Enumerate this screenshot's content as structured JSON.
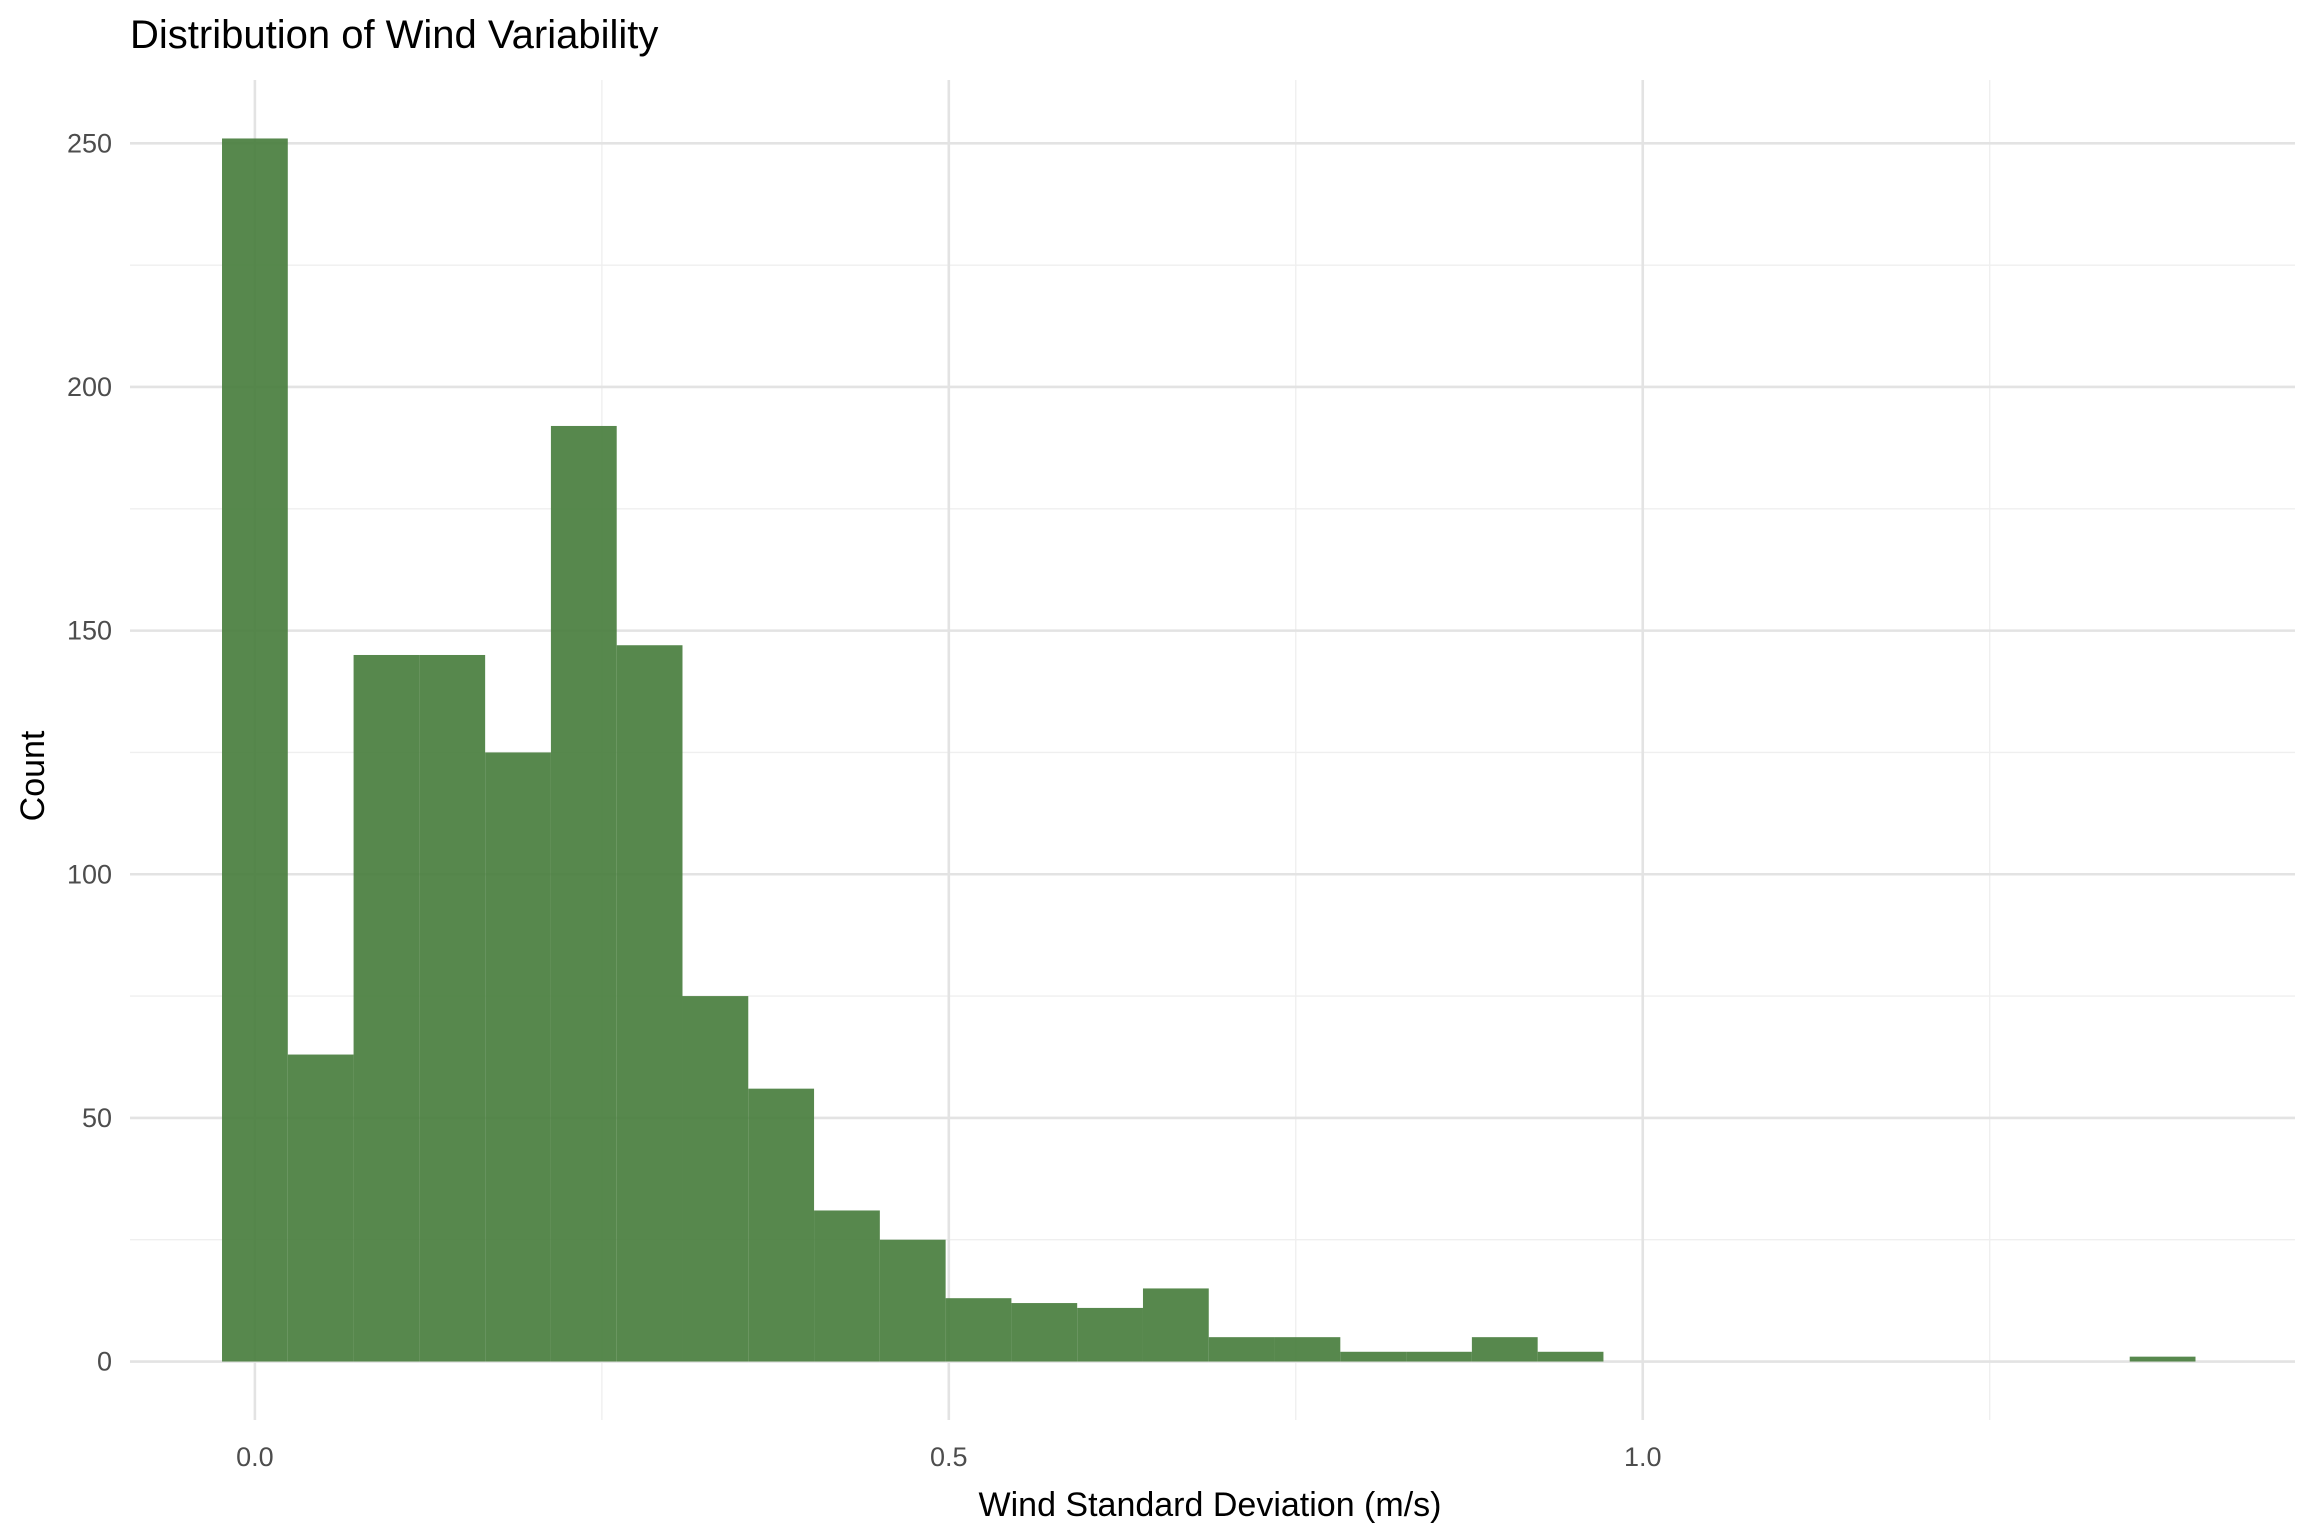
{
  "chart_data": {
    "type": "bar",
    "title": "Distribution of Wind Variability",
    "xlabel": "Wind Standard Deviation (m/s)",
    "ylabel": "Count",
    "bar_color": "#4a7f3f",
    "grid": true,
    "xlim": [
      -0.09,
      1.47
    ],
    "ylim": [
      -12,
      263
    ],
    "x_ticks": [
      0.0,
      0.5,
      1.0
    ],
    "x_tick_labels": [
      "0.0",
      "0.5",
      "1.0"
    ],
    "x_minor_ticks": [
      0.25,
      0.75,
      1.25
    ],
    "y_ticks": [
      0,
      50,
      100,
      150,
      200,
      250
    ],
    "y_tick_labels": [
      "0",
      "50",
      "100",
      "150",
      "200",
      "250"
    ],
    "y_minor_ticks": [
      25,
      75,
      125,
      175,
      225
    ],
    "bin_width": 0.0474,
    "bins": [
      {
        "x0": -0.0237,
        "x1": 0.0237,
        "count": 251
      },
      {
        "x0": 0.0237,
        "x1": 0.0711,
        "count": 63
      },
      {
        "x0": 0.0711,
        "x1": 0.1185,
        "count": 145
      },
      {
        "x0": 0.1185,
        "x1": 0.1659,
        "count": 145
      },
      {
        "x0": 0.1659,
        "x1": 0.2133,
        "count": 125
      },
      {
        "x0": 0.2133,
        "x1": 0.2607,
        "count": 192
      },
      {
        "x0": 0.2607,
        "x1": 0.3081,
        "count": 147
      },
      {
        "x0": 0.3081,
        "x1": 0.3555,
        "count": 75
      },
      {
        "x0": 0.3555,
        "x1": 0.4029,
        "count": 56
      },
      {
        "x0": 0.4029,
        "x1": 0.4503,
        "count": 31
      },
      {
        "x0": 0.4503,
        "x1": 0.4977,
        "count": 25
      },
      {
        "x0": 0.4977,
        "x1": 0.5451,
        "count": 13
      },
      {
        "x0": 0.5451,
        "x1": 0.5925,
        "count": 12
      },
      {
        "x0": 0.5925,
        "x1": 0.6399,
        "count": 11
      },
      {
        "x0": 0.6399,
        "x1": 0.6873,
        "count": 15
      },
      {
        "x0": 0.6873,
        "x1": 0.7347,
        "count": 5
      },
      {
        "x0": 0.7347,
        "x1": 0.7821,
        "count": 5
      },
      {
        "x0": 0.7821,
        "x1": 0.8295,
        "count": 2
      },
      {
        "x0": 0.8295,
        "x1": 0.8769,
        "count": 2
      },
      {
        "x0": 0.8769,
        "x1": 0.9243,
        "count": 5
      },
      {
        "x0": 0.9243,
        "x1": 0.9717,
        "count": 2
      },
      {
        "x0": 1.3509,
        "x1": 1.3983,
        "count": 1
      }
    ]
  }
}
